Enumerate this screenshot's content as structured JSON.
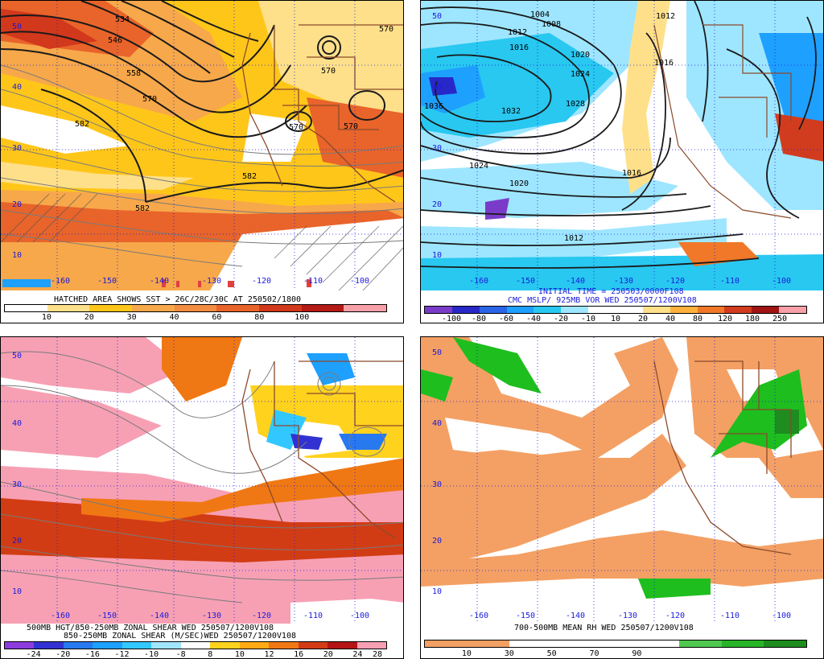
{
  "panels": [
    {
      "id": "tl",
      "caption": "HATCHED AREA SHOWS SST > 26C/28C/30C AT 250502/1800",
      "colorbar": {
        "ticks": [
          "10",
          "20",
          "30",
          "40",
          "60",
          "80",
          "100"
        ],
        "colors": [
          "#ffffff",
          "#ffe08a",
          "#ffc61a",
          "#f7a84a",
          "#f28c40",
          "#e8642a",
          "#d2381c",
          "#b41a16",
          "#f7a0a8"
        ]
      },
      "contour_labels": [
        "534",
        "546",
        "558",
        "570",
        "582",
        "582",
        "582",
        "570",
        "570",
        "570",
        "570"
      ],
      "lat_labels": [
        "50",
        "40",
        "30",
        "20",
        "10"
      ],
      "lon_labels": [
        "-160",
        "-150",
        "-140",
        "-130",
        "-120",
        "-110",
        "-100"
      ]
    },
    {
      "id": "tr",
      "caption_line1": "INITIAL TIME = 250503/0000F108",
      "caption_line2": "CMC MSLP/ 925MB VOR WED 250507/1200V108",
      "colorbar": {
        "ticks": [
          "-100",
          "-80",
          "-60",
          "-40",
          "-20",
          "-10",
          "10",
          "20",
          "40",
          "80",
          "120",
          "180",
          "250"
        ],
        "colors": [
          "#7a3cc8",
          "#2828c8",
          "#2a64e6",
          "#1ea0ff",
          "#28c8f0",
          "#9ee6ff",
          "#ffffff",
          "#ffffff",
          "#ffe08a",
          "#ffb03c",
          "#f07828",
          "#d23c1e",
          "#a01414",
          "#f7a0a8"
        ]
      },
      "contour_labels": [
        "1004",
        "1008",
        "1012",
        "1012",
        "1016",
        "1016",
        "1020",
        "1020",
        "1024",
        "1024",
        "1028",
        "1032",
        "1036",
        "1012",
        "1016"
      ],
      "lat_labels": [
        "50",
        "40",
        "30",
        "20",
        "10"
      ],
      "lon_labels": [
        "-160",
        "-150",
        "-140",
        "-130",
        "-120",
        "-110",
        "-100"
      ]
    },
    {
      "id": "bl",
      "caption_line1": "500MB HGT/850-250MB ZONAL SHEAR WED 250507/1200V108",
      "caption_line2": "850-250MB ZONAL SHEAR (M/SEC)WED 250507/1200V108",
      "colorbar": {
        "ticks": [
          "-24",
          "-20",
          "-16",
          "-12",
          "-10",
          "-8",
          "8",
          "10",
          "12",
          "16",
          "20",
          "24",
          "28"
        ],
        "colors": [
          "#8c3cdc",
          "#3232d2",
          "#2878f0",
          "#1ea0ff",
          "#32c8ff",
          "#a0e6ff",
          "#ffffff",
          "#ffd21e",
          "#ffaa14",
          "#f07814",
          "#d23c14",
          "#b41414",
          "#f7a0b4"
        ]
      },
      "lat_labels": [
        "50",
        "40",
        "30",
        "20",
        "10"
      ],
      "lon_labels": [
        "-160",
        "-150",
        "-140",
        "-130",
        "-120",
        "-110",
        "-100"
      ]
    },
    {
      "id": "br",
      "caption": "700-500MB MEAN RH WED 250507/1200V108",
      "colorbar": {
        "ticks": [
          "10",
          "30",
          "50",
          "70",
          "90"
        ],
        "colors": [
          "#f4a064",
          "#f4a064",
          "#ffffff",
          "#ffffff",
          "#ffffff",
          "#ffffff",
          "#50c850",
          "#28b428",
          "#1e8c1e"
        ]
      },
      "lat_labels": [
        "50",
        "40",
        "30",
        "20",
        "10"
      ],
      "lon_labels": [
        "-160",
        "-150",
        "-140",
        "-130",
        "-120",
        "-110",
        "-100"
      ]
    }
  ]
}
